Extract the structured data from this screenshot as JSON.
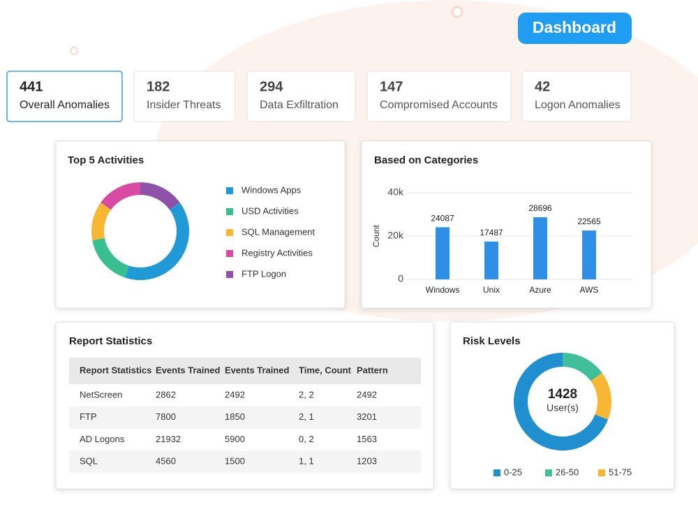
{
  "header": {
    "button": "Dashboard"
  },
  "stats": [
    {
      "value": 441,
      "label": "Overall Anomalies"
    },
    {
      "value": 182,
      "label": "Insider Threats"
    },
    {
      "value": 294,
      "label": "Data Exfiltration"
    },
    {
      "value": 147,
      "label": "Compromised Accounts"
    },
    {
      "value": 42,
      "label": "Logon Anomalies"
    }
  ],
  "chart_data": [
    {
      "type": "donut",
      "title": "Top 5 Activities",
      "categories": [
        "Windows Apps",
        "USD Activities",
        "SQL Management",
        "Registry Activities",
        "FTP Logon"
      ],
      "values": [
        40,
        17,
        13,
        15,
        15
      ],
      "colors": [
        "#1f9ad6",
        "#37bf90",
        "#f7b733",
        "#d94aa2",
        "#8e52a8"
      ],
      "start": "FTP Logon"
    },
    {
      "type": "bar",
      "title": "Based on Categories",
      "y_label": "Count",
      "categories": [
        "Windows",
        "Unix",
        "Azure",
        "AWS"
      ],
      "values": [
        24087,
        17487,
        28696,
        22565
      ],
      "color": "#2f8ee5",
      "ylim": [
        0,
        40000
      ],
      "yticks": [
        0,
        {
          "value": 20000,
          "label": "20k"
        },
        {
          "value": 40000,
          "label": "40k"
        }
      ],
      "grid": true
    },
    {
      "type": "donut",
      "title": "Risk Levels",
      "center_value": 1428,
      "center_label": "User(s)",
      "categories": [
        "0-25",
        "26-50",
        "51-75"
      ],
      "values": [
        69,
        15,
        16
      ],
      "colors": [
        "#1f8fd0",
        "#3fc09a",
        "#f7b733"
      ],
      "start": "26-50"
    }
  ],
  "table": {
    "title": "Report Statistics",
    "columns": [
      "Report Statistics",
      "Events Trained",
      "Events Trained",
      "Time, Count",
      "Pattern"
    ],
    "rows": [
      [
        "NetScreen",
        2862,
        2492,
        "2, 2",
        2492
      ],
      [
        "FTP",
        7800,
        1850,
        "2, 1",
        3201
      ],
      [
        "AD Logons",
        21932,
        5900,
        "0, 2",
        1563
      ],
      [
        "SQL",
        4560,
        1500,
        "1, 1",
        1203
      ]
    ]
  }
}
